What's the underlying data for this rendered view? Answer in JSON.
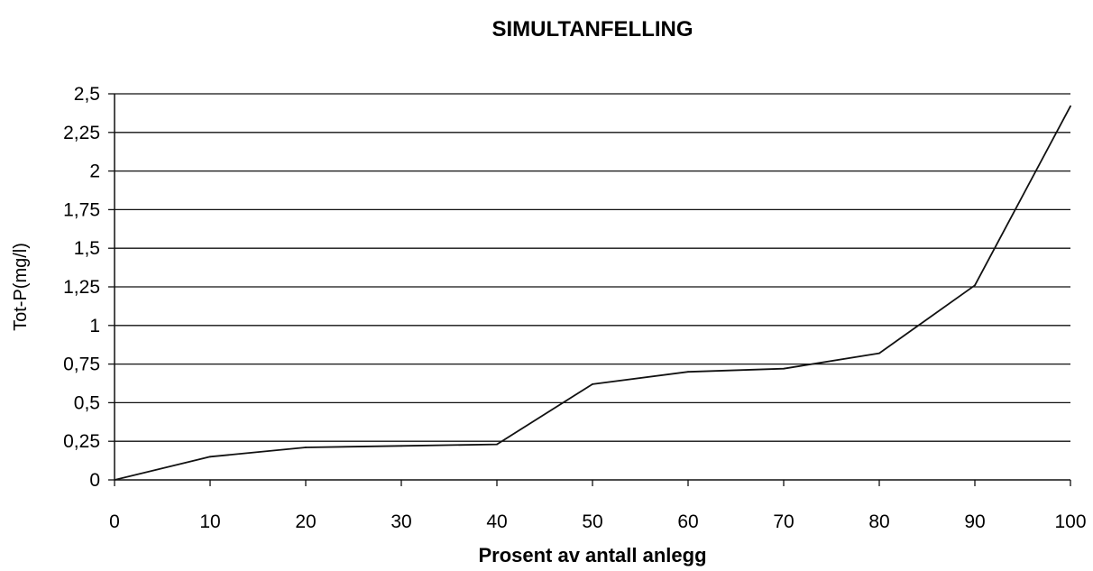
{
  "chart_data": {
    "type": "line",
    "title": "SIMULTANFELLING",
    "xlabel": "Prosent av antall anlegg",
    "ylabel": "Tot-P(mg/l)",
    "xlim": [
      0,
      100
    ],
    "ylim": [
      0,
      2.5
    ],
    "x_ticks": [
      "0",
      "10",
      "20",
      "30",
      "40",
      "50",
      "60",
      "70",
      "80",
      "90",
      "100"
    ],
    "y_ticks": [
      "0",
      "0,25",
      "0,5",
      "0,75",
      "1",
      "1,25",
      "1,5",
      "1,75",
      "2",
      "2,25",
      "2,5"
    ],
    "grid": true,
    "legend": "none",
    "series": [
      {
        "x": [
          0,
          10,
          20,
          30,
          40,
          50,
          60,
          70,
          80,
          90,
          100
        ],
        "y": [
          0,
          0.15,
          0.21,
          0.22,
          0.23,
          0.62,
          0.7,
          0.72,
          0.82,
          1.26,
          2.42
        ]
      }
    ],
    "colors": {
      "line": "#111111",
      "grid": "#111111"
    }
  }
}
